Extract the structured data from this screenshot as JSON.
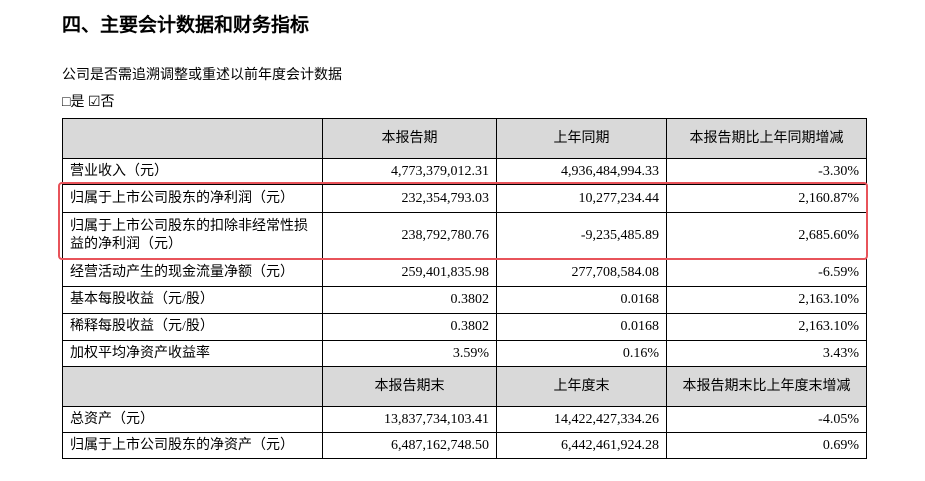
{
  "header": {
    "title": "四、主要会计数据和财务指标"
  },
  "intro": {
    "question": "公司是否需追溯调整或重述以前年度会计数据",
    "options": "□是 ☑否"
  },
  "table": {
    "header1": [
      "本报告期",
      "上年同期",
      "本报告期比上年同期增减"
    ],
    "rows1": [
      [
        "营业收入（元）",
        "4,773,379,012.31",
        "4,936,484,994.33",
        "-3.30%"
      ],
      [
        "归属于上市公司股东的净利润（元）",
        "232,354,793.03",
        "10,277,234.44",
        "2,160.87%"
      ],
      [
        "归属于上市公司股东的扣除非经常性损益的净利润（元）",
        "238,792,780.76",
        "-9,235,485.89",
        "2,685.60%"
      ],
      [
        "经营活动产生的现金流量净额（元）",
        "259,401,835.98",
        "277,708,584.08",
        "-6.59%"
      ],
      [
        "基本每股收益（元/股）",
        "0.3802",
        "0.0168",
        "2,163.10%"
      ],
      [
        "稀释每股收益（元/股）",
        "0.3802",
        "0.0168",
        "2,163.10%"
      ],
      [
        "加权平均净资产收益率",
        "3.59%",
        "0.16%",
        "3.43%"
      ]
    ],
    "header2": [
      "本报告期末",
      "上年度末",
      "本报告期末比上年度末增减"
    ],
    "rows2": [
      [
        "总资产（元）",
        "13,837,734,103.41",
        "14,422,427,334.26",
        "-4.05%"
      ],
      [
        "归属于上市公司股东的净资产（元）",
        "6,487,162,748.50",
        "6,442,461,924.28",
        "0.69%"
      ]
    ]
  }
}
